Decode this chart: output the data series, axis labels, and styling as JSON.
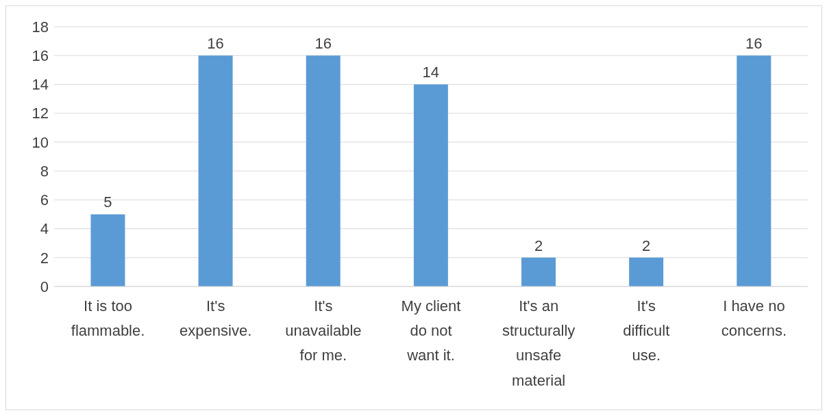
{
  "chart_data": {
    "type": "bar",
    "categories": [
      "It is too flammable.",
      "It's expensive.",
      "It's unavailable for me.",
      "My client do not want it.",
      "It's an structurally unsafe material",
      "It's difficult use.",
      "I have no concerns."
    ],
    "values": [
      5,
      16,
      16,
      14,
      2,
      2,
      16
    ],
    "color": "#5b9bd5",
    "ylim": [
      0,
      18
    ],
    "yticks": [
      0,
      2,
      4,
      6,
      8,
      10,
      12,
      14,
      16,
      18
    ],
    "grid": "y",
    "data_labels": true
  }
}
